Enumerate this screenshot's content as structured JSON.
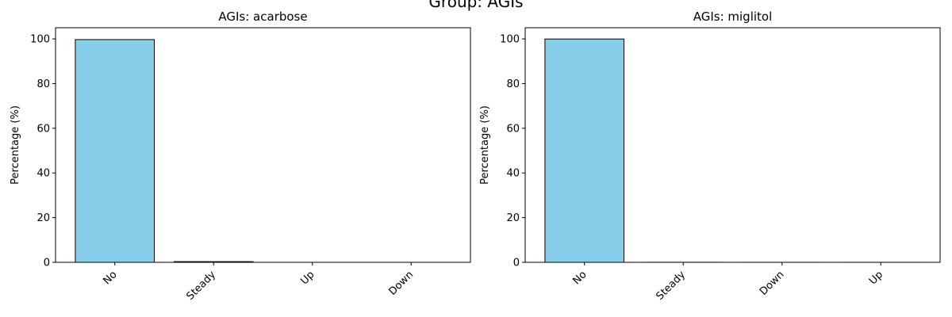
{
  "suptitle": "Group: AGIs",
  "colors": {
    "bar_fill": "#87ceeb",
    "bar_stroke": "#000000",
    "axis": "#000000",
    "background": "#ffffff"
  },
  "chart_data": [
    {
      "type": "bar",
      "title": "AGIs: acarbose",
      "xlabel": "",
      "ylabel": "Percentage (%)",
      "categories": [
        "No",
        "Steady",
        "Up",
        "Down"
      ],
      "values": [
        99.7,
        0.3,
        0.0,
        0.0
      ],
      "ylim": [
        0,
        105
      ],
      "yticks": [
        0,
        20,
        40,
        60,
        80,
        100
      ],
      "grid": false
    },
    {
      "type": "bar",
      "title": "AGIs: miglitol",
      "xlabel": "",
      "ylabel": "Percentage (%)",
      "categories": [
        "No",
        "Steady",
        "Down",
        "Up"
      ],
      "values": [
        99.96,
        0.02,
        0.01,
        0.01
      ],
      "ylim": [
        0,
        105
      ],
      "yticks": [
        0,
        20,
        40,
        60,
        80,
        100
      ],
      "grid": false
    }
  ]
}
